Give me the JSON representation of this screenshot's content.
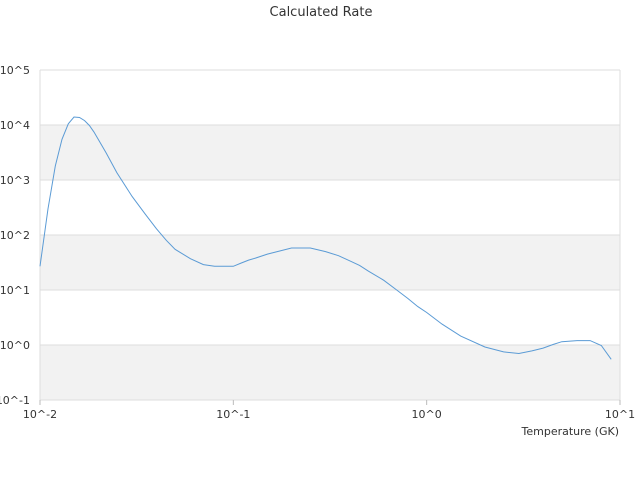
{
  "chart_data": {
    "type": "line",
    "title": "Calculated Rate",
    "xlabel": "Temperature (GK)",
    "ylabel": "",
    "x_scale": "log",
    "y_scale": "log",
    "xlim": [
      0.01,
      10
    ],
    "ylim": [
      0.1,
      100000
    ],
    "x_tick_labels": [
      "10^-2",
      "10^-1",
      "10^0",
      "10^1"
    ],
    "y_tick_labels": [
      "10^-1",
      "10^0",
      "10^1",
      "10^2",
      "10^3",
      "10^4",
      "10^5"
    ],
    "grid": "alternating horizontal bands",
    "line_color": "#5b9bd5",
    "band_color": "#f2f2f2",
    "series": [
      {
        "x": [
          0.01,
          0.011,
          0.012,
          0.013,
          0.014,
          0.015,
          0.016,
          0.017,
          0.018,
          0.019,
          0.02,
          0.022,
          0.025,
          0.03,
          0.035,
          0.04,
          0.045,
          0.05,
          0.06,
          0.07,
          0.08,
          0.09,
          0.1,
          0.11,
          0.12,
          0.13,
          0.15,
          0.2,
          0.25,
          0.3,
          0.35,
          0.4,
          0.45,
          0.5,
          0.6,
          0.7,
          0.8,
          0.9,
          1.0,
          1.2,
          1.5,
          2.0,
          2.5,
          3.0,
          3.5,
          4.0,
          4.5,
          5.0,
          6.0,
          7.0,
          8.0,
          9.0
        ],
        "y": [
          27,
          300,
          1800,
          5500,
          10500,
          14000,
          13700,
          12000,
          9800,
          7500,
          5500,
          3100,
          1350,
          500,
          240,
          130,
          80,
          55,
          37,
          29,
          27,
          27,
          27,
          31,
          35,
          38,
          45,
          58,
          58,
          50,
          42,
          34,
          28,
          22,
          15,
          10,
          7,
          5,
          3.9,
          2.4,
          1.45,
          0.92,
          0.75,
          0.7,
          0.78,
          0.88,
          1.02,
          1.15,
          1.2,
          1.2,
          0.98,
          0.55
        ]
      }
    ]
  }
}
